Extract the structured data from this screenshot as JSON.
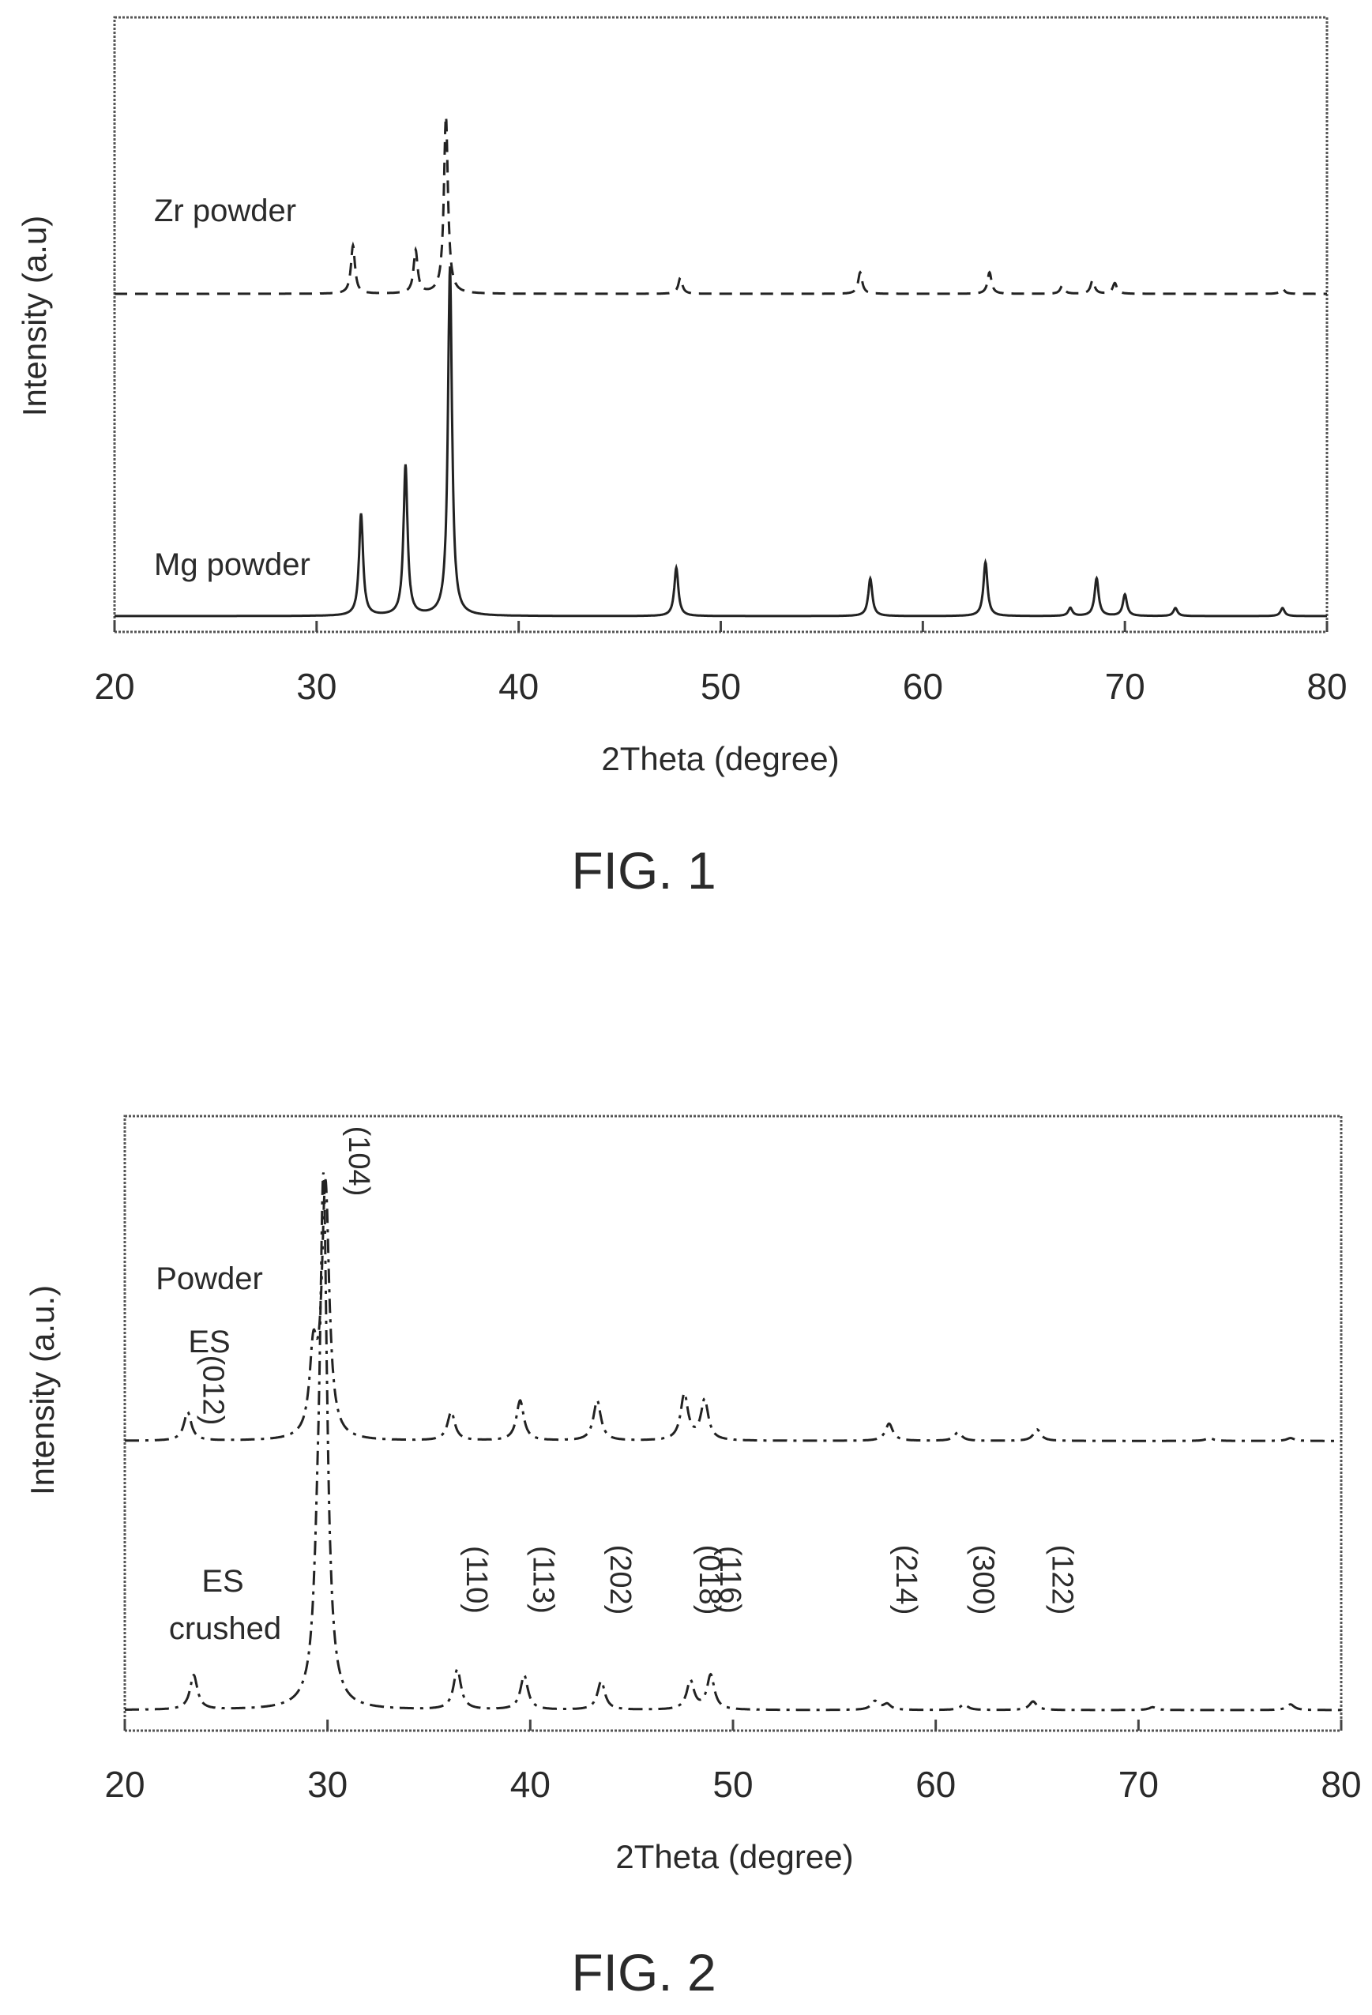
{
  "chart_data": [
    {
      "type": "line",
      "caption": "FIG. 1",
      "xlabel": "2Theta (degree)",
      "ylabel": "Intensity (a.u)",
      "xlim": [
        20,
        80
      ],
      "xticks": [
        20,
        30,
        40,
        50,
        60,
        70,
        80
      ],
      "grid": false,
      "series": [
        {
          "name": "Zr powder",
          "style": "dashed",
          "baseline": 0.6,
          "peaks": [
            [
              31.8,
              0.09
            ],
            [
              34.9,
              0.08
            ],
            [
              36.4,
              0.33
            ],
            [
              48.0,
              0.03
            ],
            [
              56.9,
              0.04
            ],
            [
              63.3,
              0.04
            ],
            [
              66.9,
              0.015
            ],
            [
              68.4,
              0.025
            ],
            [
              69.5,
              0.02
            ],
            [
              77.8,
              0.01
            ]
          ]
        },
        {
          "name": "Mg powder",
          "style": "solid",
          "baseline": 0.0,
          "peaks": [
            [
              32.2,
              0.19
            ],
            [
              34.4,
              0.28
            ],
            [
              36.6,
              0.65
            ],
            [
              47.8,
              0.09
            ],
            [
              57.4,
              0.07
            ],
            [
              63.1,
              0.1
            ],
            [
              67.3,
              0.015
            ],
            [
              68.6,
              0.07
            ],
            [
              70.0,
              0.04
            ],
            [
              72.5,
              0.015
            ],
            [
              77.8,
              0.015
            ]
          ]
        }
      ]
    },
    {
      "type": "line",
      "caption": "FIG. 2",
      "xlabel": "2Theta (degree)",
      "ylabel": "Intensity (a.u.)",
      "xlim": [
        20,
        80
      ],
      "xticks": [
        20,
        30,
        40,
        50,
        60,
        70,
        80
      ],
      "grid": false,
      "series": [
        {
          "name": "Powder ES",
          "name_lines": [
            "Powder",
            "ES"
          ],
          "style": "dash-dot",
          "baseline": 0.47,
          "peaks": [
            [
              23.1,
              0.05
            ],
            [
              29.3,
              0.14
            ],
            [
              29.9,
              0.44
            ],
            [
              36.1,
              0.05
            ],
            [
              39.5,
              0.07
            ],
            [
              43.3,
              0.07
            ],
            [
              47.6,
              0.08
            ],
            [
              48.6,
              0.07
            ],
            [
              57.7,
              0.03
            ],
            [
              61.1,
              0.015
            ],
            [
              65.0,
              0.02
            ],
            [
              73.5,
              0.005
            ],
            [
              77.5,
              0.005
            ]
          ]
        },
        {
          "name": "ES crushed",
          "name_lines": [
            "ES",
            "crushed"
          ],
          "style": "dash-dot",
          "baseline": 0.0,
          "peaks": [
            [
              23.4,
              0.06
            ],
            [
              29.5,
              0.11
            ],
            [
              29.8,
              0.9
            ],
            [
              36.4,
              0.07
            ],
            [
              39.7,
              0.06
            ],
            [
              43.5,
              0.05
            ],
            [
              47.9,
              0.05
            ],
            [
              48.9,
              0.06
            ],
            [
              57.0,
              0.015
            ],
            [
              57.6,
              0.01
            ],
            [
              61.4,
              0.01
            ],
            [
              64.8,
              0.015
            ],
            [
              70.7,
              0.005
            ],
            [
              77.5,
              0.01
            ]
          ]
        }
      ],
      "annotations": [
        {
          "text": "(104)",
          "x": 30.6
        },
        {
          "text": "(012)",
          "x": 23.4
        },
        {
          "text": "(110)",
          "x": 36.4
        },
        {
          "text": "(113)",
          "x": 39.7
        },
        {
          "text": "(202)",
          "x": 43.5
        },
        {
          "text": "(018)",
          "x": 47.9
        },
        {
          "text": "(116)",
          "x": 48.9
        },
        {
          "text": "(214)",
          "x": 57.6
        },
        {
          "text": "(300)",
          "x": 61.4
        },
        {
          "text": "(122)",
          "x": 65.3
        }
      ]
    }
  ]
}
